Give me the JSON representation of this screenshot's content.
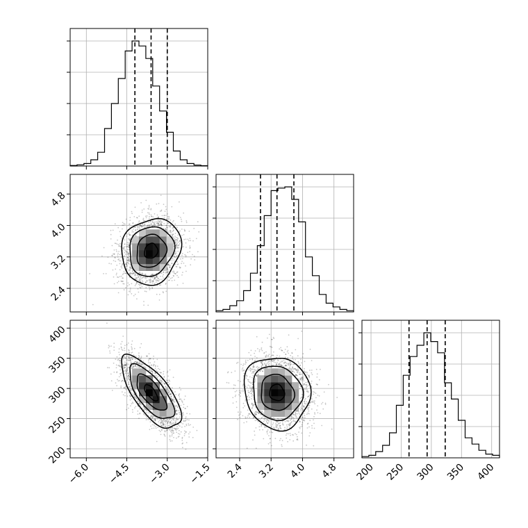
{
  "chart_data": {
    "type": "corner",
    "title": "",
    "grid": true,
    "params": [
      {
        "range": [
          -6.6,
          -1.5
        ],
        "ticks": [
          -6.0,
          -4.5,
          -3.0,
          -1.5
        ],
        "tick_labels": [
          "−6.0",
          "−4.5",
          "−3.0",
          "−1.5"
        ],
        "mean": -3.6,
        "sd": 0.55,
        "quantiles": [
          -4.2,
          -3.6,
          -3.0
        ],
        "hist": [
          0.004,
          0.01,
          0.02,
          0.05,
          0.11,
          0.3,
          0.5,
          0.7,
          0.92,
          1.0,
          0.96,
          0.86,
          0.64,
          0.44,
          0.27,
          0.12,
          0.05,
          0.02,
          0.008,
          0.003
        ]
      },
      {
        "range": [
          1.8,
          5.3
        ],
        "ticks": [
          2.4,
          3.2,
          4.0,
          4.8
        ],
        "tick_labels": [
          "2.4",
          "3.2",
          "4.0",
          "4.8"
        ],
        "mean": 3.35,
        "sd": 0.42,
        "quantiles": [
          2.93,
          3.35,
          3.78
        ],
        "hist": [
          0.01,
          0.02,
          0.05,
          0.09,
          0.17,
          0.31,
          0.53,
          0.77,
          0.97,
          0.99,
          1.0,
          0.9,
          0.72,
          0.44,
          0.29,
          0.14,
          0.07,
          0.04,
          0.02,
          0.01
        ]
      },
      {
        "range": [
          185,
          413
        ],
        "ticks": [
          200,
          250,
          300,
          350,
          400
        ],
        "tick_labels": [
          "200",
          "250",
          "300",
          "350",
          "400"
        ],
        "mean": 293,
        "sd": 30,
        "quantiles": [
          263,
          293,
          323
        ],
        "hist": [
          0.01,
          0.02,
          0.05,
          0.1,
          0.2,
          0.42,
          0.66,
          0.81,
          0.9,
          1.0,
          0.93,
          0.84,
          0.6,
          0.47,
          0.3,
          0.16,
          0.11,
          0.06,
          0.03,
          0.02
        ]
      }
    ],
    "pairs": [
      {
        "row": 1,
        "col": 0,
        "corr": 0.12
      },
      {
        "row": 2,
        "col": 0,
        "corr": -0.7
      },
      {
        "row": 2,
        "col": 1,
        "corr": -0.08
      }
    ]
  }
}
